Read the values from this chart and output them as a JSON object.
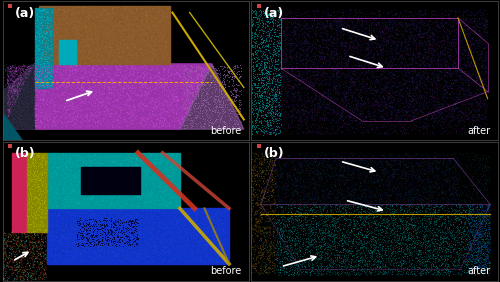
{
  "fig_width": 5.0,
  "fig_height": 2.82,
  "dpi": 100,
  "background_color": "#000000",
  "panel_labels": [
    "(a)",
    "(a)",
    "(b)",
    "(b)"
  ],
  "panel_watermarks": [
    "before",
    "after",
    "before",
    "after"
  ],
  "label_color": "#ffffff",
  "label_fontsize": 9,
  "watermark_color": "#ffffff",
  "watermark_fontsize": 7,
  "border_color": "#555555",
  "border_linewidth": 0.5
}
